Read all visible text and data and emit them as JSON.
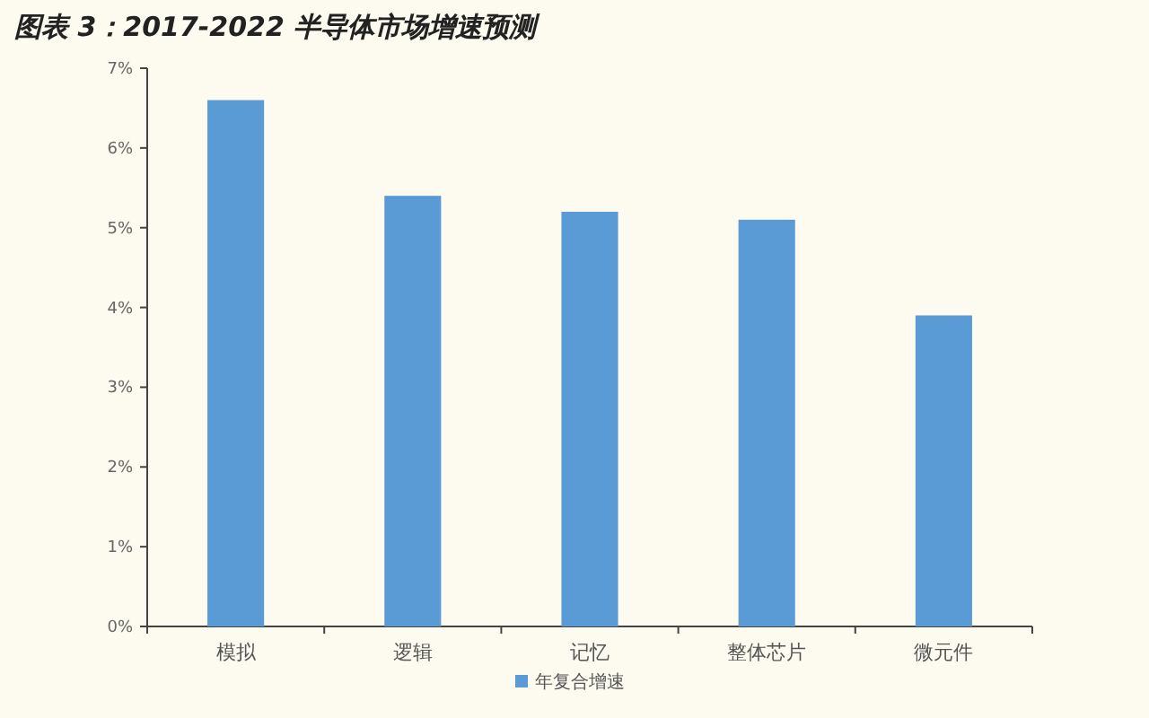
{
  "chart_data": {
    "type": "bar",
    "title": "图表 3：2017-2022 半导体市场增速预测",
    "categories": [
      "模拟",
      "逻辑",
      "记忆",
      "整体芯片",
      "微元件"
    ],
    "series": [
      {
        "name": "年复合增速",
        "color": "#5b9bd5",
        "values": [
          6.6,
          5.4,
          5.2,
          5.1,
          3.9
        ]
      }
    ],
    "ylim": [
      0,
      7
    ],
    "yticks": [
      {
        "value": 0,
        "label": "0%"
      },
      {
        "value": 1,
        "label": "1%"
      },
      {
        "value": 2,
        "label": "2%"
      },
      {
        "value": 3,
        "label": "3%"
      },
      {
        "value": 4,
        "label": "4%"
      },
      {
        "value": 5,
        "label": "5%"
      },
      {
        "value": 6,
        "label": "6%"
      },
      {
        "value": 7,
        "label": "7%"
      }
    ],
    "grid": false,
    "legend": "bottom left"
  }
}
